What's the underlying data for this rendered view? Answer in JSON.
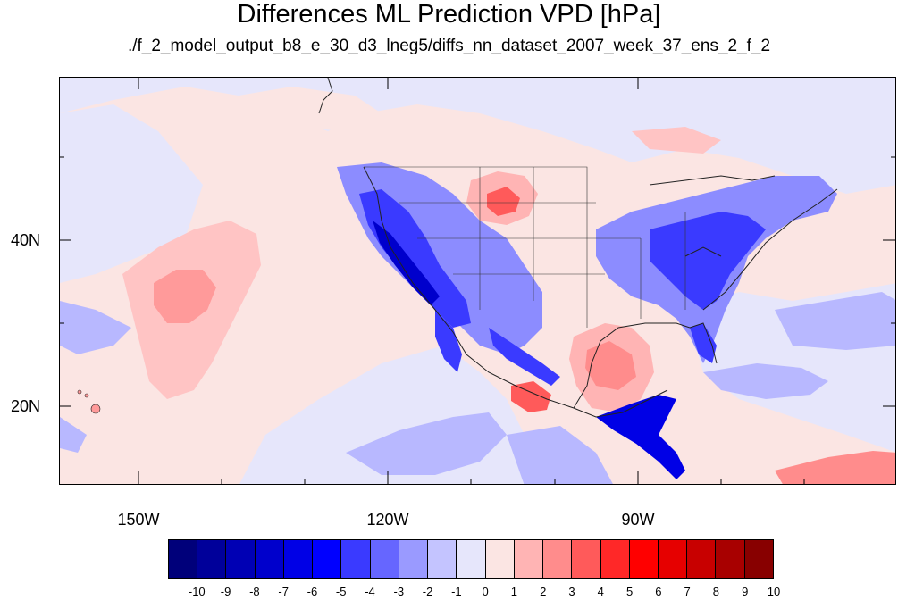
{
  "header": {
    "title": "Differences ML Prediction VPD [hPa]",
    "subtitle": "./f_2_model_output_b8_e_30_d3_lneg5/diffs_nn_dataset_2007_week_37_ens_2_f_2"
  },
  "map": {
    "lat_labels": [
      "40N",
      "20N"
    ],
    "lon_labels": [
      "150W",
      "120W",
      "90W"
    ],
    "colors": {
      "ocean_background": "#fbe5e3",
      "coastline": "#222222"
    }
  },
  "colorbar": {
    "labels": [
      "-10",
      "-9",
      "-8",
      "-7",
      "-6",
      "-5",
      "-4",
      "-3",
      "-2",
      "-1",
      "0",
      "1",
      "2",
      "3",
      "4",
      "5",
      "6",
      "7",
      "8",
      "9",
      "10"
    ],
    "colors": [
      "#00007a",
      "#00009a",
      "#0000b4",
      "#0000cc",
      "#0000e6",
      "#0000ff",
      "#3a3aff",
      "#6666ff",
      "#9a9aff",
      "#c4c4ff",
      "#e6e6fb",
      "#fbe5e3",
      "#ffb4b4",
      "#ff8c8c",
      "#ff5a5a",
      "#ff2828",
      "#ff0000",
      "#e60000",
      "#c80000",
      "#a80000",
      "#880000"
    ]
  }
}
